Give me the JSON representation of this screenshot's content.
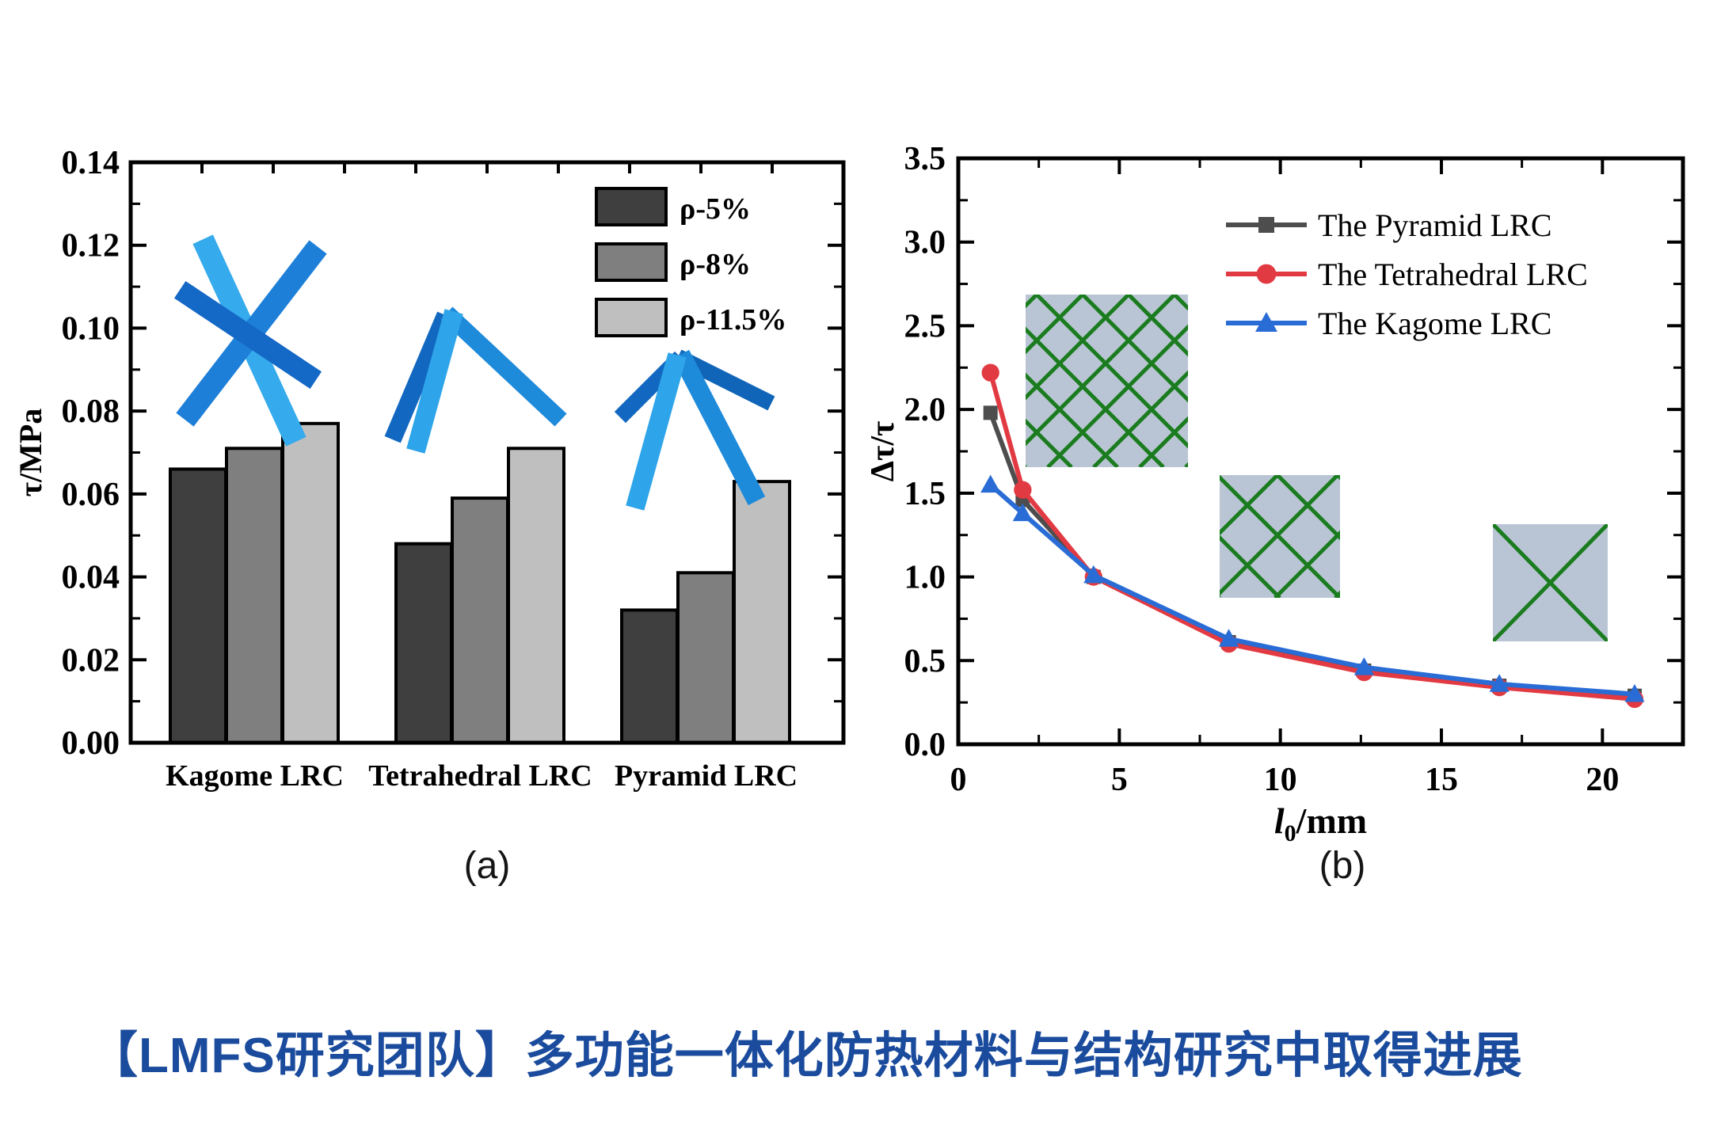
{
  "figure": {
    "background": "#ffffff"
  },
  "captions": {
    "a": "(a)",
    "b": "(b)"
  },
  "headline": {
    "prefix": "【LMFS研究团队】",
    "title": "多功能一体化防热材料与结构研究中取得进展",
    "color": "#1a4b9d"
  },
  "chart_data": [
    {
      "type": "bar",
      "panel": "a",
      "title": "",
      "xlabel": "",
      "ylabel": "τ/MPa",
      "ylim": [
        0,
        0.14
      ],
      "yticks": [
        "0.00",
        "0.02",
        "0.04",
        "0.06",
        "0.08",
        "0.10",
        "0.12",
        "0.14"
      ],
      "categories": [
        "Kagome LRC",
        "Tetrahedral LRC",
        "Pyramid LRC"
      ],
      "series": [
        {
          "name": "ρ-5%",
          "color": "#3f3f3f",
          "values": [
            0.066,
            0.048,
            0.032
          ]
        },
        {
          "name": "ρ-8%",
          "color": "#7f7f7f",
          "values": [
            0.071,
            0.059,
            0.041
          ]
        },
        {
          "name": "ρ-11.5%",
          "color": "#bfbfbf",
          "values": [
            0.077,
            0.071,
            0.063
          ]
        }
      ],
      "legend_position": "top-right",
      "frame_color": "#000000",
      "unit_cell_icons": [
        "kagome-unit-cell",
        "tetrahedral-unit-cell",
        "pyramid-unit-cell"
      ],
      "strut_colors": {
        "light": "#2ea5ea",
        "mid": "#1e8ada",
        "dark": "#1268c0"
      }
    },
    {
      "type": "line",
      "panel": "b",
      "title": "",
      "xlabel": {
        "symbol": "l",
        "subscript": "0",
        "unit": "/mm"
      },
      "ylabel": "Δτ/τ",
      "xlim": [
        0,
        22.5
      ],
      "ylim": [
        0,
        3.5
      ],
      "xticks": [
        "0",
        "5",
        "10",
        "15",
        "20"
      ],
      "xtick_values": [
        0,
        5,
        10,
        15,
        20
      ],
      "yticks": [
        "0.0",
        "0.5",
        "1.0",
        "1.5",
        "2.0",
        "2.5",
        "3.0",
        "3.5"
      ],
      "x": [
        1,
        2,
        4.2,
        8.4,
        12.6,
        16.8,
        21
      ],
      "series": [
        {
          "name": "The Pyramid LRC",
          "color": "#4d4d4d",
          "marker": "square",
          "values": [
            1.98,
            1.46,
            1.0,
            0.61,
            0.44,
            0.35,
            0.29
          ]
        },
        {
          "name": "The Tetrahedral LRC",
          "color": "#e23a42",
          "marker": "circle",
          "values": [
            2.22,
            1.52,
            1.0,
            0.6,
            0.43,
            0.34,
            0.27
          ]
        },
        {
          "name": "The Kagome LRC",
          "color": "#2a6cd5",
          "marker": "triangle",
          "values": [
            1.55,
            1.38,
            1.01,
            0.63,
            0.46,
            0.36,
            0.3
          ]
        }
      ],
      "legend_position": "top-right",
      "grid": "off",
      "insets": {
        "fill": "#b9c5d4",
        "line_color": "#1a7c1e",
        "icons": [
          "fine-lattice-mesh",
          "medium-lattice-mesh",
          "coarse-lattice-x"
        ]
      }
    }
  ]
}
